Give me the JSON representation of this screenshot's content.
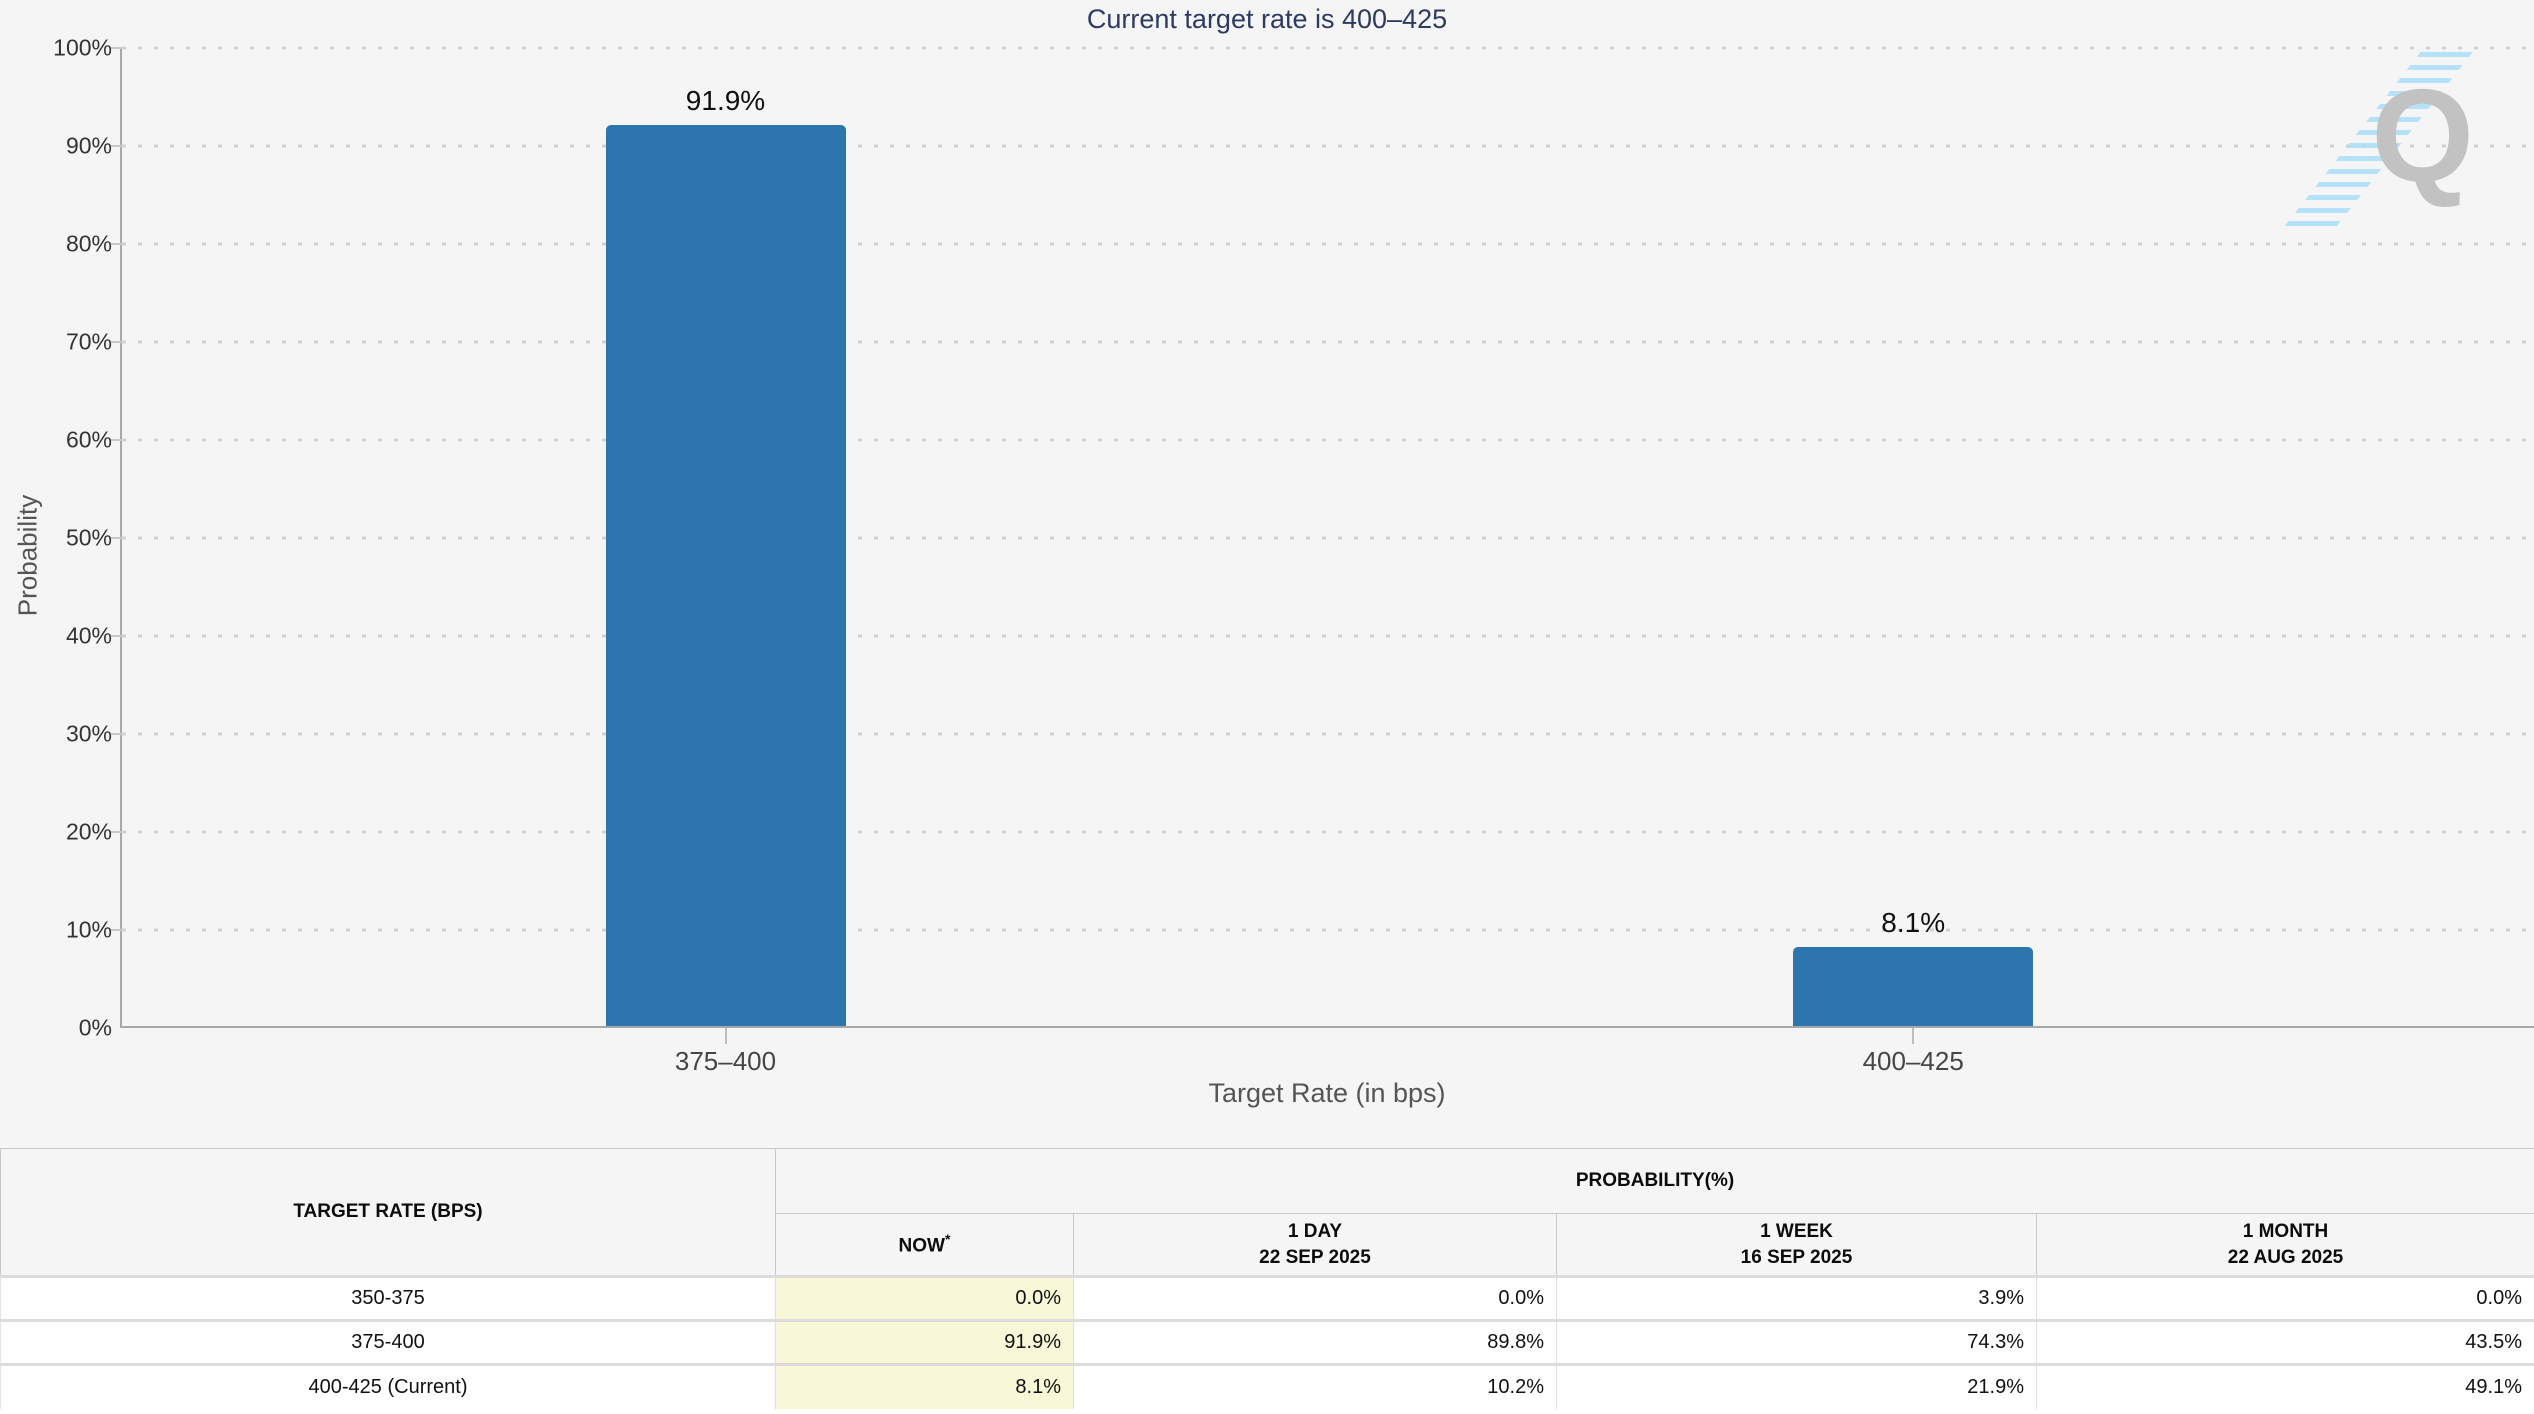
{
  "title": "Current target rate is 400–425",
  "chart_data": {
    "type": "bar",
    "title": "Current target rate is 400–425",
    "xlabel": "Target Rate (in bps)",
    "ylabel": "Probability",
    "ylim": [
      0,
      100
    ],
    "grid": "dotted-horizontal",
    "legend": "none",
    "categories": [
      "375–400",
      "400–425"
    ],
    "values": [
      91.9,
      8.1
    ],
    "bar_labels": [
      "91.9%",
      "8.1%"
    ],
    "y_tick_labels": [
      "0%",
      "10%",
      "20%",
      "30%",
      "40%",
      "50%",
      "60%",
      "70%",
      "80%",
      "90%",
      "100%"
    ]
  },
  "logo": {
    "letter": "Q"
  },
  "table": {
    "rate_header": "TARGET RATE (BPS)",
    "group_header": "PROBABILITY(%)",
    "now_note": "*",
    "columns": [
      {
        "label": "NOW",
        "sub": ""
      },
      {
        "label": "1 DAY",
        "sub": "22 SEP 2025"
      },
      {
        "label": "1 WEEK",
        "sub": "16 SEP 2025"
      },
      {
        "label": "1 MONTH",
        "sub": "22 AUG 2025"
      }
    ],
    "rows": [
      {
        "rate": "350-375",
        "values": [
          "0.0%",
          "0.0%",
          "3.9%",
          "0.0%"
        ]
      },
      {
        "rate": "375-400",
        "values": [
          "91.9%",
          "89.8%",
          "74.3%",
          "43.5%"
        ]
      },
      {
        "rate": "400-425 (Current)",
        "values": [
          "8.1%",
          "10.2%",
          "21.9%",
          "49.1%"
        ]
      }
    ]
  },
  "colors": {
    "bar": "#2d76ad",
    "title_text": "#2c3a64",
    "now_highlight": "#f8f8d8",
    "logo_blue": "#aadef8",
    "logo_gray": "#c2c2c2",
    "chart_background": "#f5f5f6"
  }
}
